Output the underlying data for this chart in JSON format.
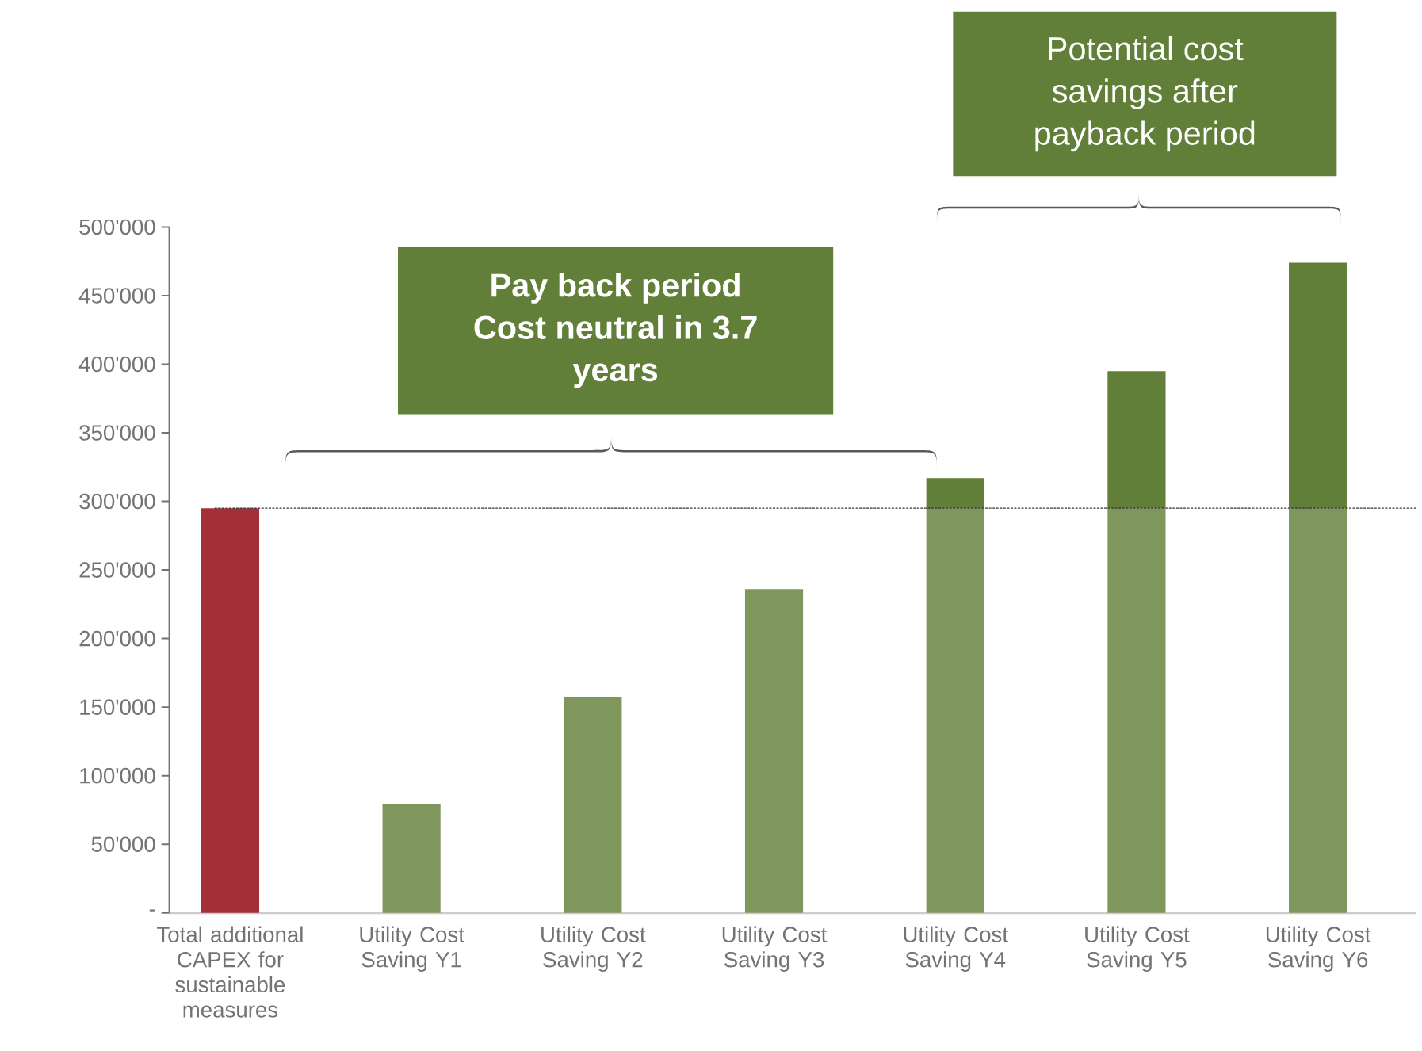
{
  "chart_data": {
    "type": "bar",
    "stacked": true,
    "categories": [
      "Total additional CAPEX for sustainable measures",
      "Utility Cost Saving Y1",
      "Utility Cost Saving Y2",
      "Utility Cost Saving Y3",
      "Utility Cost Saving Y4",
      "Utility Cost Saving Y5",
      "Utility Cost Saving Y6"
    ],
    "series": [
      {
        "colors": [
          "#a52f36",
          "#7f975c",
          "#7f975c",
          "#7f975c",
          "#7f975c",
          "#7f975c",
          "#7f975c"
        ],
        "values": [
          295000,
          79000,
          157000,
          236000,
          295000,
          295000,
          295000
        ]
      },
      {
        "color": "#617f38",
        "values": [
          null,
          null,
          null,
          null,
          22000,
          100000,
          179000
        ]
      }
    ],
    "ylim": [
      0,
      500000
    ],
    "yticks": [
      {
        "value": 0,
        "label": "-"
      },
      {
        "value": 50000,
        "label": "50'000"
      },
      {
        "value": 100000,
        "label": "100'000"
      },
      {
        "value": 150000,
        "label": "150'000"
      },
      {
        "value": 200000,
        "label": "200'000"
      },
      {
        "value": 250000,
        "label": "250'000"
      },
      {
        "value": 300000,
        "label": "300'000"
      },
      {
        "value": 350000,
        "label": "350'000"
      },
      {
        "value": 400000,
        "label": "400'000"
      },
      {
        "value": 450000,
        "label": "450'000"
      },
      {
        "value": 500000,
        "label": "500'000"
      }
    ],
    "ref_lines": [
      {
        "axis": "y",
        "value": 295000,
        "color": "#333333",
        "line_style": "dashed"
      }
    ],
    "annotations": [
      "Pay back period Cost neutral in 3.7 years",
      "Potential cost savings after payback period"
    ]
  }
}
